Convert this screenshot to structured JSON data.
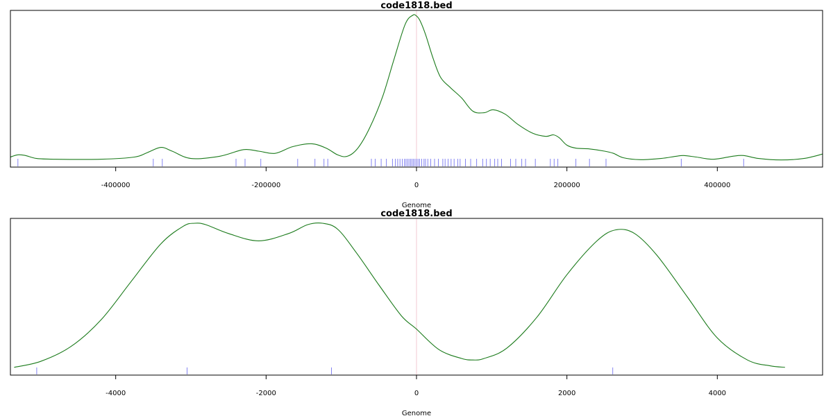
{
  "colors": {
    "curve": "#1a7a1a",
    "rug": "#6666ee",
    "center_line": "#f0c8d0",
    "frame": "#000000"
  },
  "chart_data": [
    {
      "type": "line",
      "title": "code1818.bed",
      "xlabel": "Genome",
      "ylabel": "",
      "xlim": [
        -540000,
        540000
      ],
      "ylim": [
        0,
        1
      ],
      "x_ticks": [
        -400000,
        -200000,
        0,
        200000,
        400000
      ],
      "x_tick_labels": [
        "-400000",
        "-200000",
        "0",
        "200000",
        "400000"
      ],
      "grid": false,
      "center_line_x": 0,
      "density": {
        "x": [
          -540000,
          -530000,
          -520000,
          -505000,
          -480000,
          -420000,
          -375000,
          -358000,
          -340000,
          -325000,
          -300000,
          -262000,
          -230000,
          -210000,
          -188000,
          -165000,
          -140000,
          -120000,
          -105000,
          -92000,
          -78000,
          -62000,
          -45000,
          -30000,
          -15000,
          -5000,
          0,
          5000,
          12000,
          22000,
          32000,
          45000,
          60000,
          75000,
          90000,
          102000,
          118000,
          135000,
          155000,
          172000,
          182000,
          190000,
          200000,
          212000,
          230000,
          250000,
          262000,
          275000,
          298000,
          325000,
          345000,
          355000,
          372000,
          395000,
          420000,
          435000,
          455000,
          485000,
          515000,
          540000
        ],
        "y": [
          0.04,
          0.055,
          0.05,
          0.03,
          0.025,
          0.025,
          0.04,
          0.07,
          0.105,
          0.08,
          0.03,
          0.045,
          0.09,
          0.08,
          0.065,
          0.11,
          0.13,
          0.1,
          0.055,
          0.045,
          0.1,
          0.24,
          0.45,
          0.7,
          0.94,
          1.0,
          0.995,
          0.96,
          0.87,
          0.71,
          0.58,
          0.51,
          0.44,
          0.35,
          0.34,
          0.36,
          0.33,
          0.26,
          0.2,
          0.18,
          0.19,
          0.17,
          0.12,
          0.1,
          0.095,
          0.08,
          0.065,
          0.035,
          0.022,
          0.03,
          0.045,
          0.05,
          0.04,
          0.025,
          0.045,
          0.05,
          0.03,
          0.02,
          0.03,
          0.06
        ]
      },
      "rug_x": [
        -530000,
        -350000,
        -338000,
        -240000,
        -228000,
        -207000,
        -158000,
        -135000,
        -123000,
        -118000,
        -60000,
        -55000,
        -47000,
        -40000,
        -32000,
        -28000,
        -25000,
        -22000,
        -19000,
        -16000,
        -14000,
        -12000,
        -10000,
        -8000,
        -6000,
        -4000,
        -2000,
        0,
        2000,
        4000,
        7000,
        10000,
        12000,
        15000,
        19000,
        24000,
        29000,
        35000,
        38000,
        42000,
        46000,
        50000,
        55000,
        58000,
        65000,
        72000,
        80000,
        88000,
        93000,
        98000,
        104000,
        108000,
        113000,
        125000,
        132000,
        140000,
        145000,
        158000,
        178000,
        183000,
        188000,
        212000,
        230000,
        252000,
        352000,
        435000
      ]
    },
    {
      "type": "line",
      "title": "code1818.bed",
      "xlabel": "Genome",
      "ylabel": "",
      "xlim": [
        -5400,
        5400
      ],
      "ylim": [
        0,
        1
      ],
      "x_ticks": [
        -4000,
        -2000,
        0,
        2000,
        4000
      ],
      "x_tick_labels": [
        "-4000",
        "-2000",
        "0",
        "2000",
        "4000"
      ],
      "grid": false,
      "center_line_x": 0,
      "density": {
        "x": [
          -5350,
          -5000,
          -4600,
          -4200,
          -3800,
          -3400,
          -3100,
          -2950,
          -2800,
          -2500,
          -2100,
          -1700,
          -1450,
          -1250,
          -1050,
          -800,
          -500,
          -200,
          0,
          300,
          600,
          750,
          900,
          1200,
          1600,
          2000,
          2400,
          2650,
          2900,
          3200,
          3600,
          4000,
          4400,
          4700,
          4900
        ],
        "y": [
          0.02,
          0.06,
          0.16,
          0.34,
          0.6,
          0.86,
          0.98,
          1.0,
          0.99,
          0.93,
          0.88,
          0.93,
          0.99,
          1.0,
          0.96,
          0.8,
          0.58,
          0.37,
          0.28,
          0.14,
          0.08,
          0.07,
          0.08,
          0.15,
          0.36,
          0.65,
          0.88,
          0.955,
          0.93,
          0.78,
          0.5,
          0.22,
          0.07,
          0.03,
          0.02
        ]
      },
      "rug_x": [
        -5050,
        -3050,
        -1130,
        2610
      ]
    }
  ]
}
